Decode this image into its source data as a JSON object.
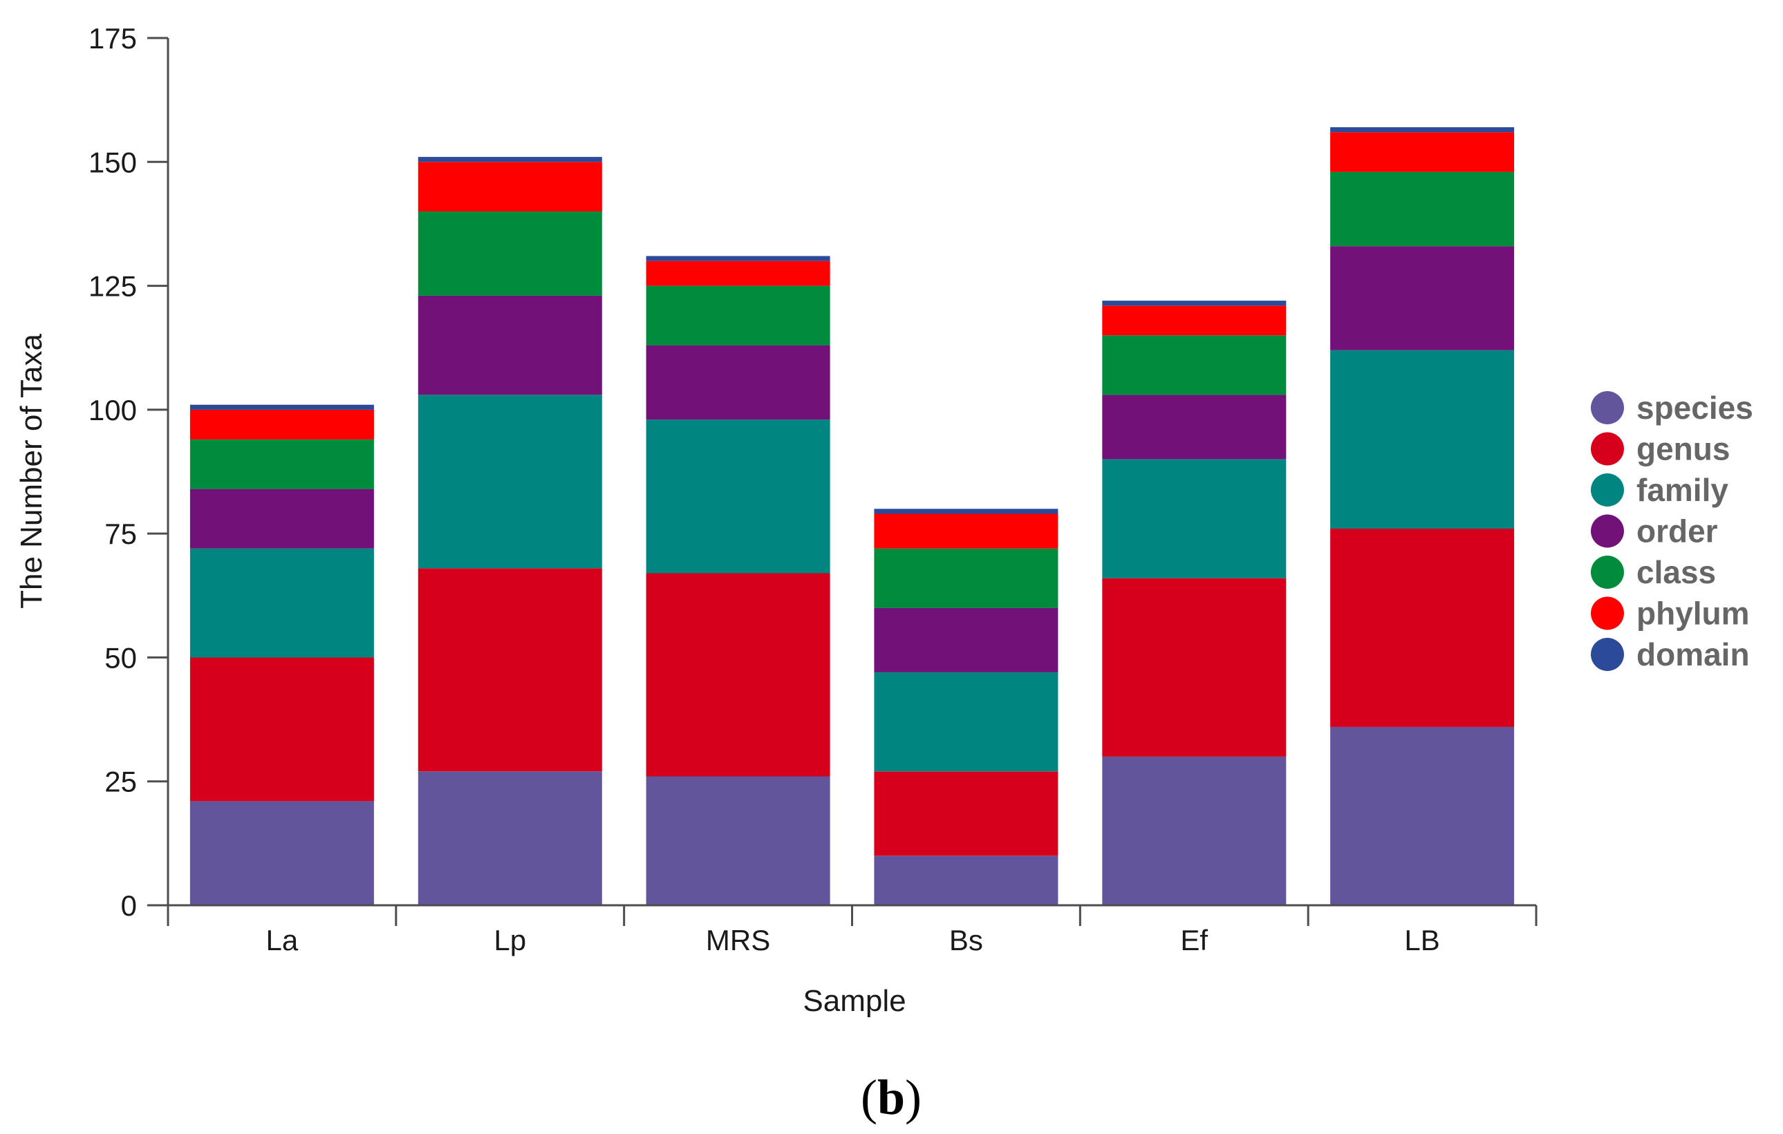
{
  "chart_data": {
    "type": "bar",
    "stacked": true,
    "categories": [
      "La",
      "Lp",
      "MRS",
      "Bs",
      "Ef",
      "LB"
    ],
    "series": [
      {
        "name": "species",
        "color": "#63559c",
        "values": [
          21,
          27,
          26,
          10,
          30,
          36
        ]
      },
      {
        "name": "genus",
        "color": "#d6001c",
        "values": [
          29,
          41,
          41,
          17,
          36,
          40
        ]
      },
      {
        "name": "family",
        "color": "#008580",
        "values": [
          22,
          35,
          31,
          20,
          24,
          36
        ]
      },
      {
        "name": "order",
        "color": "#721279",
        "values": [
          12,
          20,
          15,
          13,
          13,
          21
        ]
      },
      {
        "name": "class",
        "color": "#008c3c",
        "values": [
          10,
          17,
          12,
          12,
          12,
          15
        ]
      },
      {
        "name": "phylum",
        "color": "#ff0000",
        "values": [
          6,
          10,
          5,
          7,
          6,
          8
        ]
      },
      {
        "name": "domain",
        "color": "#2c4a9a",
        "values": [
          1,
          1,
          1,
          1,
          1,
          1
        ]
      }
    ],
    "xlabel": "Sample",
    "ylabel": "The Number of Taxa",
    "ylim": [
      0,
      175
    ],
    "yticks": [
      0,
      25,
      50,
      75,
      100,
      125,
      150,
      175
    ],
    "legend_position": "right",
    "grid": false
  },
  "panel_label": {
    "open": "(",
    "letter": "b",
    "close": ")"
  }
}
